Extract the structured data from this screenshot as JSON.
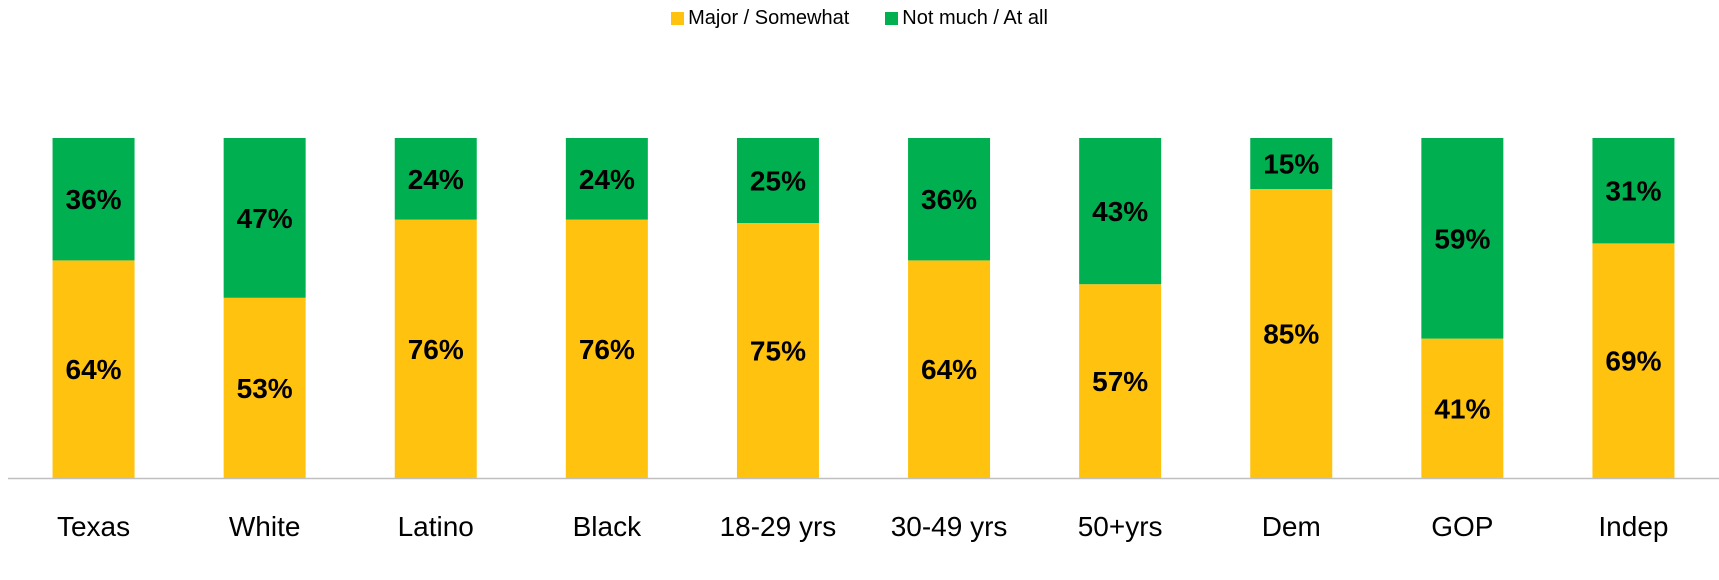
{
  "chart_data": {
    "type": "bar",
    "stacked": true,
    "percent_stacked": true,
    "categories": [
      "Texas",
      "White",
      "Latino",
      "Black",
      "18-29 yrs",
      "30-49 yrs",
      "50+yrs",
      "Dem",
      "GOP",
      "Indep"
    ],
    "series": [
      {
        "name": "Major / Somewhat",
        "color": "#FFC20E",
        "values": [
          64,
          53,
          76,
          76,
          75,
          64,
          57,
          85,
          41,
          69
        ],
        "labels": [
          "64%",
          "53%",
          "76%",
          "76%",
          "75%",
          "64%",
          "57%",
          "85%",
          "41%",
          "69%"
        ]
      },
      {
        "name": "Not much / At all",
        "color": "#00B050",
        "values": [
          36,
          47,
          24,
          24,
          25,
          36,
          43,
          15,
          59,
          31
        ],
        "labels": [
          "36%",
          "47%",
          "24%",
          "24%",
          "25%",
          "36%",
          "43%",
          "15%",
          "59%",
          "31%"
        ]
      }
    ],
    "ylim": [
      0,
      100
    ],
    "legend_position": "top-center",
    "grid": false
  }
}
